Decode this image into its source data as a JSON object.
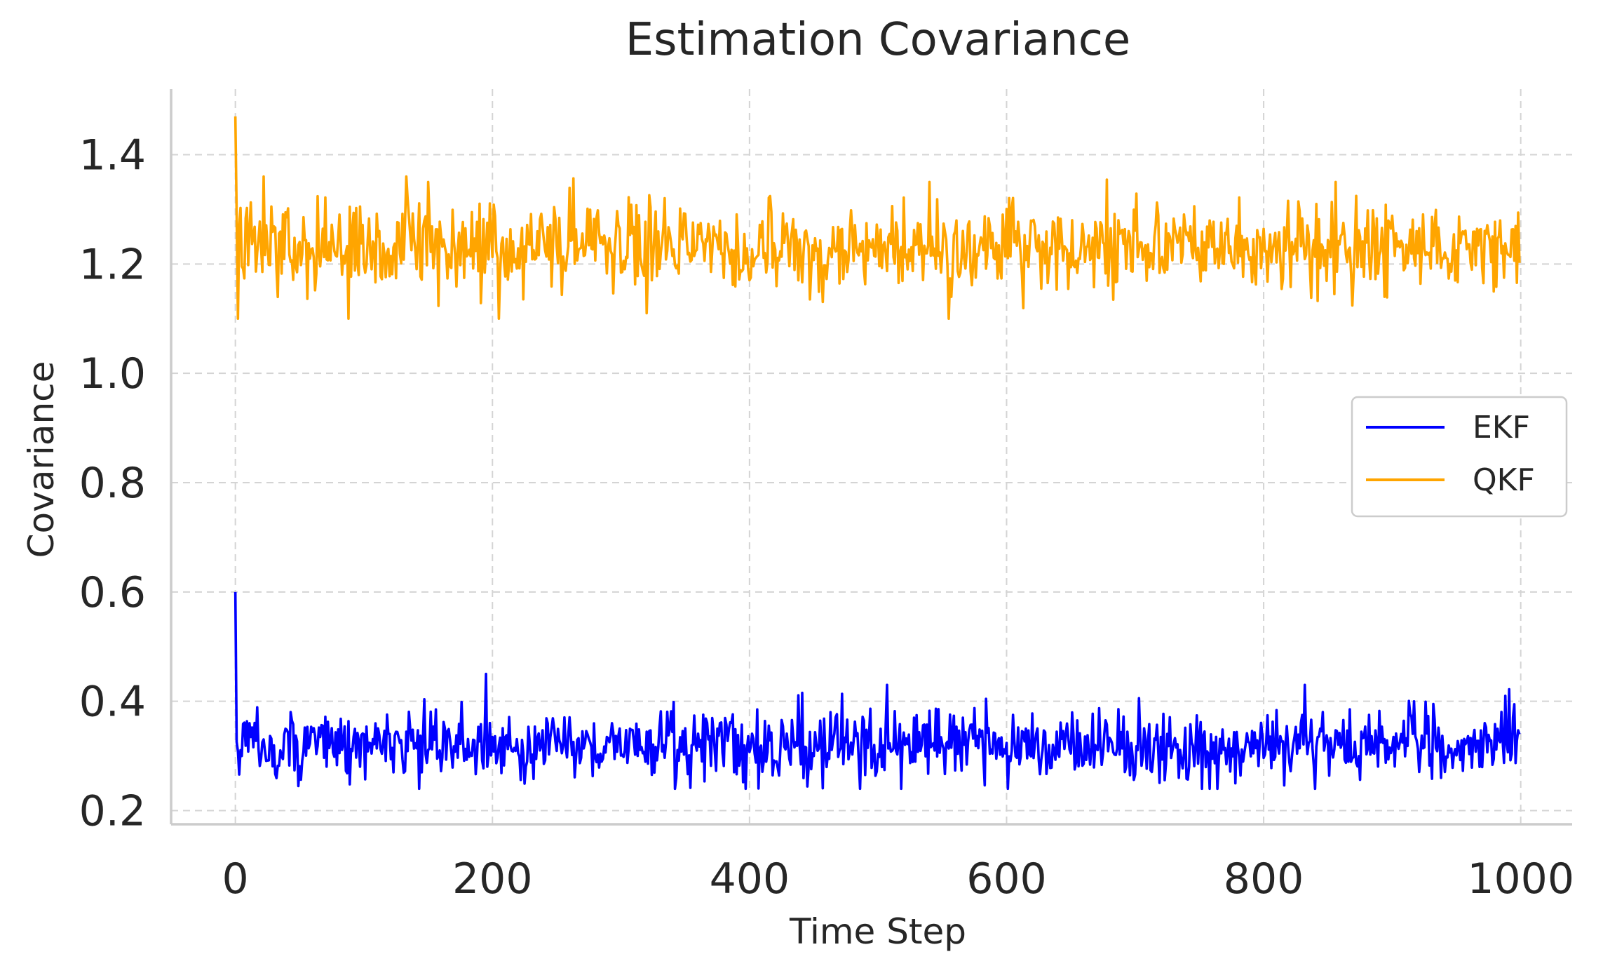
{
  "chart_data": {
    "type": "line",
    "title": "Estimation Covariance",
    "xlabel": "Time Step",
    "ylabel": "Covariance",
    "xlim": [
      -50,
      1040
    ],
    "ylim": [
      0.175,
      1.52
    ],
    "xticks": [
      0,
      200,
      400,
      600,
      800,
      1000
    ],
    "xtick_labels": [
      "0",
      "200",
      "400",
      "600",
      "800",
      "1000"
    ],
    "yticks": [
      0.2,
      0.4,
      0.6,
      0.8,
      1.0,
      1.2,
      1.4
    ],
    "ytick_labels": [
      "0.2",
      "0.4",
      "0.6",
      "0.8",
      "1.0",
      "1.2",
      "1.4"
    ],
    "grid": true,
    "legend_position": "center-right",
    "x_range": [
      0,
      999
    ],
    "series": [
      {
        "name": "EKF",
        "color": "#0000ff",
        "initial": 0.6,
        "typical_mean": 0.32,
        "typical_range": [
          0.24,
          0.45
        ],
        "peaks": [
          {
            "x": 195,
            "y": 0.45
          },
          {
            "x": 507,
            "y": 0.43
          },
          {
            "x": 832,
            "y": 0.43
          },
          {
            "x": 988,
            "y": 0.41
          }
        ],
        "troughs": [
          {
            "x": 752,
            "y": 0.24
          },
          {
            "x": 778,
            "y": 0.25
          },
          {
            "x": 938,
            "y": 0.26
          }
        ]
      },
      {
        "name": "QKF",
        "color": "#ffa500",
        "initial": 1.47,
        "typical_mean": 1.23,
        "typical_range": [
          1.1,
          1.36
        ],
        "peaks": [
          {
            "x": 2,
            "y": 1.39
          },
          {
            "x": 22,
            "y": 1.36
          },
          {
            "x": 150,
            "y": 1.35
          },
          {
            "x": 540,
            "y": 1.35
          },
          {
            "x": 555,
            "y": 1.36
          },
          {
            "x": 856,
            "y": 1.35
          }
        ],
        "troughs": [
          {
            "x": 2,
            "y": 1.1
          },
          {
            "x": 88,
            "y": 1.1
          },
          {
            "x": 205,
            "y": 1.1
          },
          {
            "x": 555,
            "y": 1.1
          },
          {
            "x": 320,
            "y": 1.11
          }
        ]
      }
    ]
  }
}
